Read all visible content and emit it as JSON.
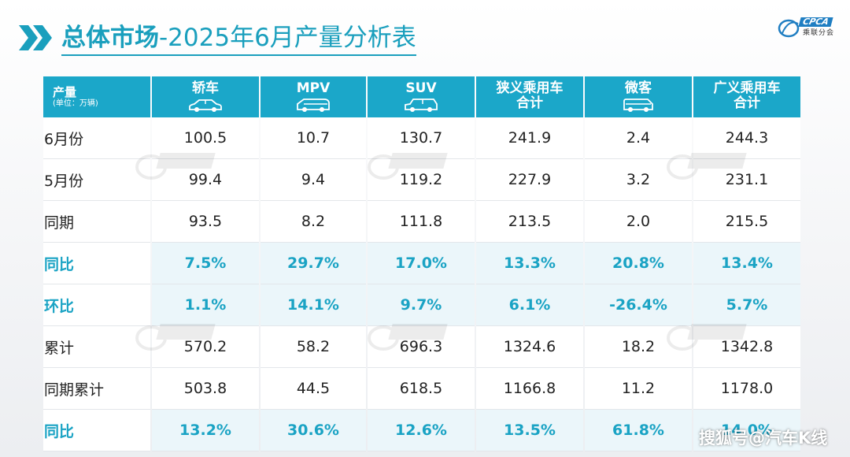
{
  "header": {
    "title_bold": "总体市场",
    "title_rest": "-2025年6月产量分析表",
    "logo_text": "CPCA",
    "logo_sub": "乘联分会"
  },
  "table": {
    "corner_label": "产量",
    "corner_unit": "(单位：万辆)",
    "columns": [
      {
        "label": "轿车",
        "icon": "sedan-icon"
      },
      {
        "label": "MPV",
        "icon": "mpv-icon"
      },
      {
        "label": "SUV",
        "icon": "suv-icon"
      },
      {
        "label": "狭义乘用车合计",
        "icon": ""
      },
      {
        "label": "微客",
        "icon": "minivan-icon"
      },
      {
        "label": "广义乘用车合计",
        "icon": ""
      }
    ],
    "rows": [
      {
        "label": "6月份",
        "highlight": false,
        "values": [
          "100.5",
          "10.7",
          "130.7",
          "241.9",
          "2.4",
          "244.3"
        ]
      },
      {
        "label": "5月份",
        "highlight": false,
        "values": [
          "99.4",
          "9.4",
          "119.2",
          "227.9",
          "3.2",
          "231.1"
        ]
      },
      {
        "label": "同期",
        "highlight": false,
        "values": [
          "93.5",
          "8.2",
          "111.8",
          "213.5",
          "2.0",
          "215.5"
        ]
      },
      {
        "label": "同比",
        "highlight": true,
        "values": [
          "7.5%",
          "29.7%",
          "17.0%",
          "13.3%",
          "20.8%",
          "13.4%"
        ]
      },
      {
        "label": "环比",
        "highlight": true,
        "values": [
          "1.1%",
          "14.1%",
          "9.7%",
          "6.1%",
          "-26.4%",
          "5.7%"
        ]
      },
      {
        "label": "累计",
        "highlight": false,
        "values": [
          "570.2",
          "58.2",
          "696.3",
          "1324.6",
          "18.2",
          "1342.8"
        ]
      },
      {
        "label": "同期累计",
        "highlight": false,
        "values": [
          "503.8",
          "44.5",
          "618.5",
          "1166.8",
          "11.2",
          "1178.0"
        ]
      },
      {
        "label": "同比",
        "highlight": true,
        "values": [
          "13.2%",
          "30.6%",
          "12.6%",
          "13.5%",
          "61.8%",
          "14.0%"
        ]
      }
    ]
  },
  "footer": {
    "watermark_text": "搜狐号@汽车K线"
  },
  "colors": {
    "accent": "#1ba7c9",
    "highlight_text": "#1aa3c4",
    "highlight_bg": "#ebf6fa"
  }
}
